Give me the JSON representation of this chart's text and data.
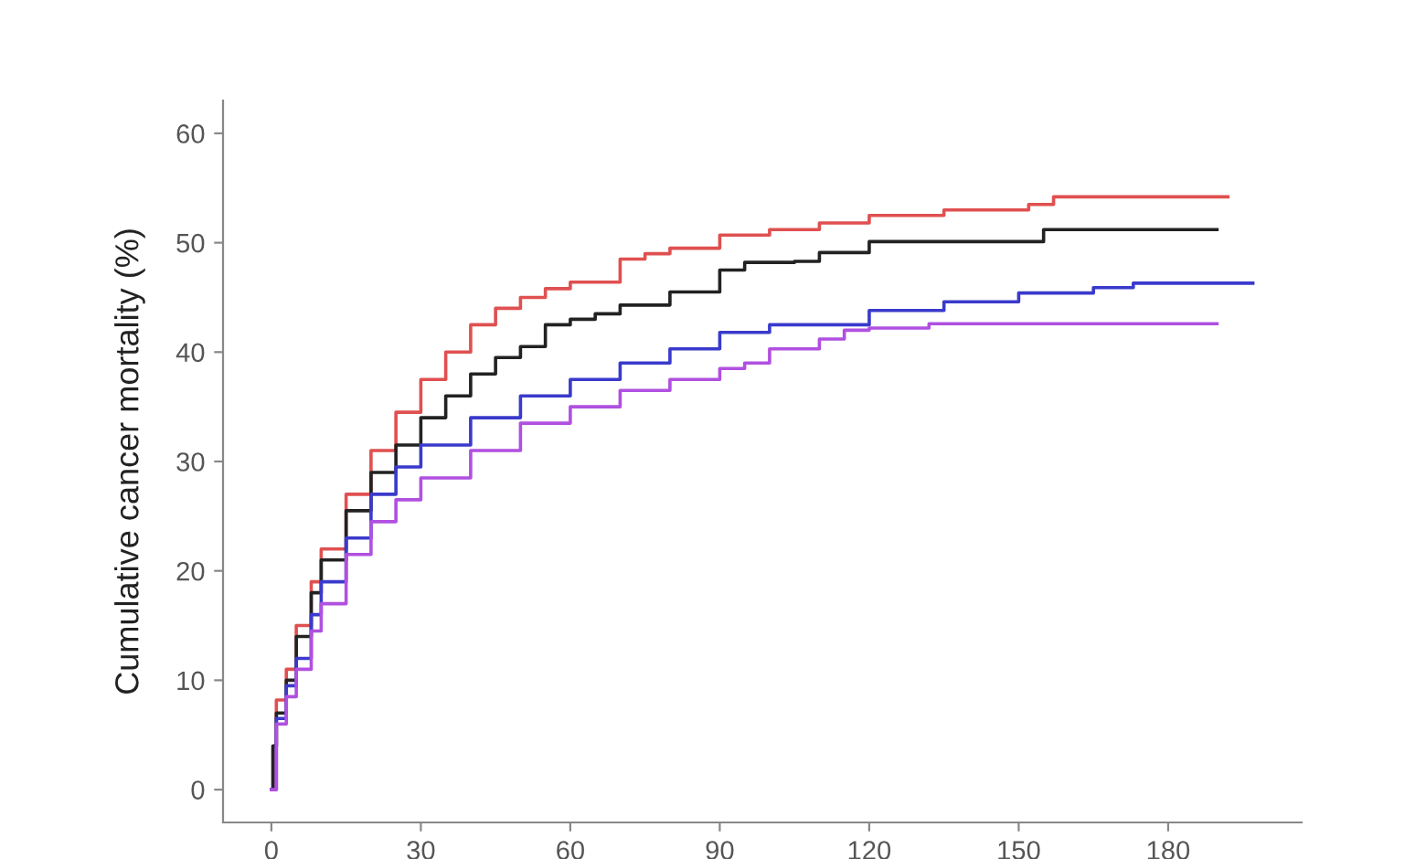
{
  "chart_data": {
    "type": "step",
    "ylabel": "Cumulative cancer mortality (%)",
    "xlim": [
      -9.7,
      206.8
    ],
    "ylim": [
      -3,
      63
    ],
    "xticks": [
      0,
      30,
      60,
      90,
      120,
      150,
      180
    ],
    "yticks": [
      0,
      10,
      20,
      30,
      40,
      50,
      60
    ],
    "grid": false,
    "legend": false,
    "marker": "none",
    "line_style": "solid",
    "series": [
      {
        "color": "#e05050",
        "x": [
          0,
          0.5,
          1,
          3,
          5,
          8,
          10,
          15,
          20,
          25,
          30,
          35,
          40,
          45,
          50,
          55,
          60,
          70,
          75,
          80,
          90,
          100,
          110,
          120,
          135,
          152,
          157,
          192
        ],
        "values": [
          0,
          4,
          8.2,
          11,
          15,
          19,
          22,
          27,
          31,
          34.5,
          37.5,
          40,
          42.5,
          44,
          45,
          45.8,
          46.4,
          48.5,
          49,
          49.5,
          50.7,
          51.2,
          51.8,
          52.5,
          53,
          53.5,
          54.2,
          54.2
        ]
      },
      {
        "color": "#222222",
        "x": [
          0,
          0.3,
          1,
          3,
          5,
          8,
          10,
          15,
          20,
          25,
          30,
          35,
          40,
          45,
          50,
          55,
          60,
          65,
          70,
          80,
          90,
          95,
          105,
          110,
          120,
          155,
          189.8
        ],
        "values": [
          0,
          4,
          7,
          10,
          14,
          18,
          21,
          25.5,
          29,
          31.5,
          34,
          36,
          38,
          39.5,
          40.5,
          42.5,
          43,
          43.5,
          44.3,
          45.5,
          47.5,
          48.2,
          48.3,
          49.1,
          50.1,
          51.2,
          51.2
        ]
      },
      {
        "color": "#3a3acc",
        "x": [
          0,
          1,
          3,
          5,
          8,
          10,
          15,
          20,
          25,
          30,
          40,
          50,
          60,
          70,
          80,
          90,
          100,
          120,
          135,
          150,
          165,
          173,
          197
        ],
        "values": [
          0,
          6.5,
          9.5,
          12,
          16,
          19,
          23,
          27,
          29.5,
          31.5,
          34,
          36,
          37.5,
          39,
          40.3,
          41.8,
          42.5,
          43.8,
          44.6,
          45.4,
          45.9,
          46.3,
          46.3
        ]
      },
      {
        "color": "#b050e0",
        "x": [
          0,
          1,
          3,
          5,
          8,
          10,
          15,
          20,
          25,
          30,
          40,
          50,
          60,
          70,
          80,
          90,
          95,
          100,
          110,
          115,
          120,
          132,
          189.8
        ],
        "values": [
          0,
          6,
          8.5,
          11,
          14.5,
          17,
          21.5,
          24.5,
          26.5,
          28.5,
          31,
          33.5,
          35,
          36.5,
          37.5,
          38.5,
          39,
          40.3,
          41.2,
          42,
          42.2,
          42.6,
          42.6
        ]
      }
    ]
  }
}
